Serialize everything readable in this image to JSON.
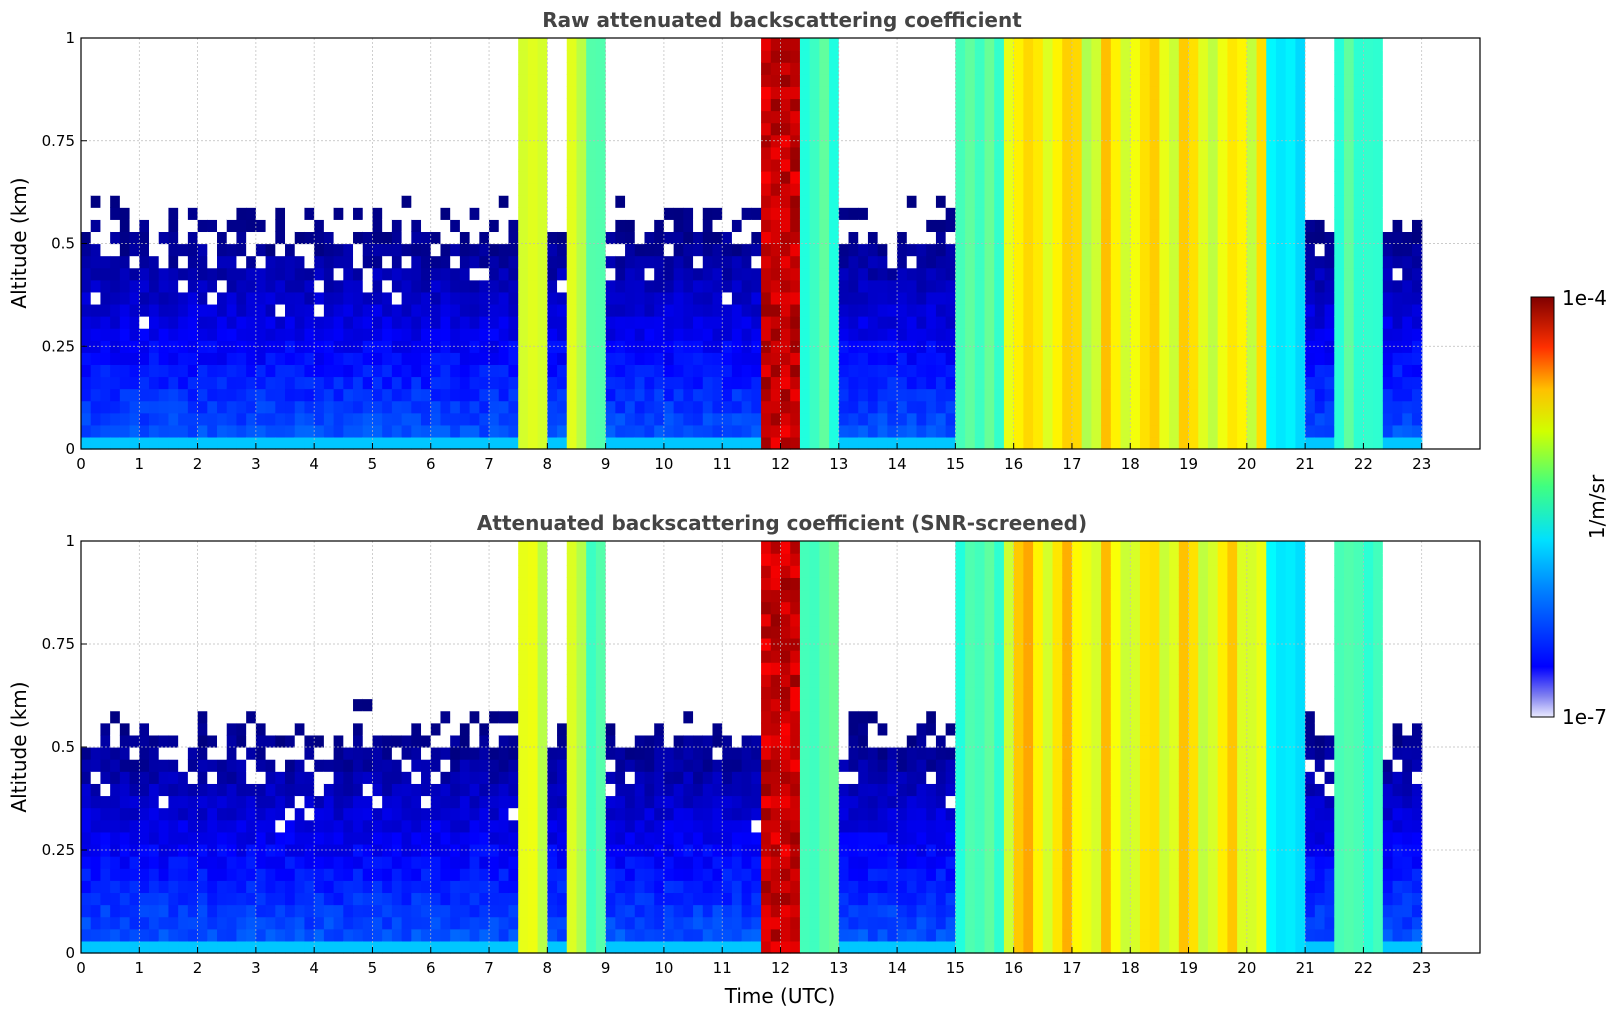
{
  "chart_data": [
    {
      "type": "heatmap",
      "title": "Raw attenuated backscattering coefficient",
      "xlabel": "",
      "ylabel": "Altitude (km)",
      "xlim": [
        0,
        24
      ],
      "ylim": [
        0,
        1
      ],
      "xticks": [
        "0",
        "1",
        "2",
        "3",
        "4",
        "5",
        "6",
        "7",
        "8",
        "9",
        "10",
        "11",
        "12",
        "13",
        "14",
        "15",
        "16",
        "17",
        "18",
        "19",
        "20",
        "21",
        "22",
        "23"
      ],
      "yticks": [
        "0",
        "0.25",
        "0.5",
        "0.75",
        "1"
      ],
      "data_xrange": [
        0,
        23
      ],
      "grid": true
    },
    {
      "type": "heatmap",
      "title": "Attenuated backscattering coefficient (SNR-screened)",
      "xlabel": "Time (UTC)",
      "ylabel": "Altitude (km)",
      "xlim": [
        0,
        24
      ],
      "ylim": [
        0,
        1
      ],
      "xticks": [
        "0",
        "1",
        "2",
        "3",
        "4",
        "5",
        "6",
        "7",
        "8",
        "9",
        "10",
        "11",
        "12",
        "13",
        "14",
        "15",
        "16",
        "17",
        "18",
        "19",
        "20",
        "21",
        "22",
        "23"
      ],
      "yticks": [
        "0",
        "0.25",
        "0.5",
        "0.75",
        "1"
      ],
      "data_xrange": [
        0,
        23
      ],
      "grid": true
    }
  ],
  "colorbar": {
    "label": "1/m/sr",
    "max_label": "1e-4",
    "min_label": "1e-7",
    "colormap": "jet",
    "scale": "log"
  },
  "colors": {
    "title": "#444444",
    "grid": "#bbbbbb",
    "axis": "#000000"
  }
}
